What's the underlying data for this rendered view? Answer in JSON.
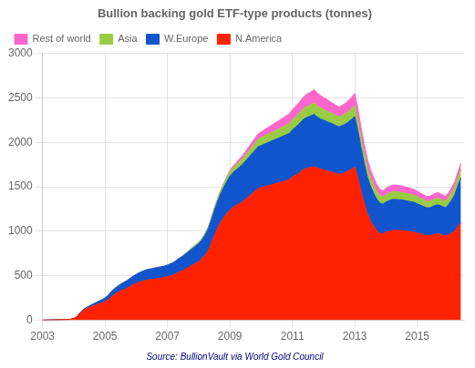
{
  "chart_data": {
    "type": "stacked_area",
    "title": "Bullion backing gold ETF-type products (tonnes)",
    "annotations": [
      "Source: BullionVault via World Gold Council"
    ],
    "x": [
      2003.0,
      2003.1,
      2003.2,
      2003.3,
      2003.4,
      2003.5,
      2003.6,
      2003.7,
      2003.8,
      2003.9,
      2004.0,
      2004.1,
      2004.2,
      2004.3,
      2004.4,
      2004.5,
      2004.6,
      2004.7,
      2004.8,
      2004.9,
      2005.0,
      2005.1,
      2005.2,
      2005.3,
      2005.4,
      2005.5,
      2005.6,
      2005.7,
      2005.8,
      2005.9,
      2006.0,
      2006.1,
      2006.2,
      2006.3,
      2006.4,
      2006.5,
      2006.6,
      2006.7,
      2006.8,
      2006.9,
      2007.0,
      2007.1,
      2007.2,
      2007.3,
      2007.4,
      2007.5,
      2007.6,
      2007.7,
      2007.8,
      2007.9,
      2008.0,
      2008.1,
      2008.2,
      2008.3,
      2008.4,
      2008.5,
      2008.6,
      2008.7,
      2008.8,
      2008.9,
      2009.0,
      2009.1,
      2009.2,
      2009.3,
      2009.4,
      2009.5,
      2009.6,
      2009.7,
      2009.8,
      2009.9,
      2010.0,
      2010.1,
      2010.2,
      2010.3,
      2010.4,
      2010.5,
      2010.6,
      2010.7,
      2010.8,
      2010.9,
      2011.0,
      2011.1,
      2011.2,
      2011.3,
      2011.4,
      2011.5,
      2011.6,
      2011.7,
      2011.8,
      2011.9,
      2012.0,
      2012.1,
      2012.2,
      2012.3,
      2012.4,
      2012.5,
      2012.6,
      2012.7,
      2012.8,
      2012.9,
      2013.0,
      2013.1,
      2013.2,
      2013.3,
      2013.4,
      2013.5,
      2013.6,
      2013.7,
      2013.8,
      2013.9,
      2014.0,
      2014.1,
      2014.2,
      2014.3,
      2014.4,
      2014.5,
      2014.6,
      2014.7,
      2014.8,
      2014.9,
      2015.0,
      2015.1,
      2015.2,
      2015.3,
      2015.4,
      2015.5,
      2015.6,
      2015.7,
      2015.8,
      2015.9,
      2016.0,
      2016.1,
      2016.2,
      2016.3,
      2016.4
    ],
    "series": [
      {
        "name": "N.America",
        "color": "#FF2200",
        "values": [
          2,
          3,
          4,
          5,
          6,
          7,
          8,
          9,
          10,
          12,
          20,
          40,
          80,
          110,
          130,
          145,
          160,
          170,
          185,
          195,
          210,
          230,
          260,
          290,
          310,
          330,
          345,
          360,
          380,
          400,
          415,
          430,
          440,
          450,
          455,
          460,
          465,
          470,
          475,
          480,
          490,
          500,
          510,
          530,
          545,
          560,
          580,
          600,
          620,
          640,
          660,
          690,
          730,
          780,
          860,
          950,
          1030,
          1100,
          1150,
          1200,
          1240,
          1270,
          1290,
          1310,
          1330,
          1360,
          1390,
          1420,
          1450,
          1480,
          1490,
          1500,
          1510,
          1520,
          1530,
          1540,
          1550,
          1560,
          1570,
          1580,
          1610,
          1630,
          1650,
          1680,
          1700,
          1710,
          1720,
          1730,
          1710,
          1700,
          1690,
          1680,
          1670,
          1660,
          1650,
          1640,
          1650,
          1660,
          1680,
          1700,
          1720,
          1600,
          1450,
          1320,
          1200,
          1120,
          1060,
          1010,
          980,
          970,
          990,
          1000,
          1010,
          1010,
          1010,
          1010,
          1005,
          1000,
          995,
          990,
          980,
          970,
          960,
          950,
          950,
          960,
          970,
          970,
          960,
          950,
          960,
          980,
          1000,
          1050,
          1100
        ]
      },
      {
        "name": "W.Europe",
        "color": "#1155CC",
        "values": [
          0,
          0,
          0,
          0,
          0,
          0,
          0,
          0,
          0,
          0,
          0,
          0,
          5,
          8,
          12,
          15,
          20,
          25,
          30,
          35,
          40,
          50,
          60,
          65,
          70,
          75,
          80,
          85,
          90,
          95,
          100,
          105,
          110,
          115,
          118,
          120,
          122,
          124,
          126,
          128,
          130,
          135,
          140,
          148,
          155,
          162,
          170,
          178,
          186,
          194,
          200,
          210,
          225,
          240,
          260,
          280,
          300,
          320,
          340,
          360,
          380,
          390,
          400,
          410,
          420,
          430,
          440,
          450,
          460,
          470,
          475,
          480,
          485,
          490,
          495,
          500,
          505,
          510,
          515,
          520,
          530,
          540,
          550,
          560,
          570,
          575,
          580,
          585,
          575,
          565,
          560,
          555,
          550,
          545,
          540,
          535,
          540,
          545,
          550,
          560,
          570,
          530,
          490,
          450,
          415,
          390,
          370,
          355,
          340,
          335,
          340,
          345,
          348,
          348,
          346,
          344,
          342,
          340,
          338,
          336,
          330,
          325,
          320,
          315,
          315,
          320,
          325,
          325,
          320,
          315,
          340,
          370,
          410,
          460,
          500
        ]
      },
      {
        "name": "Asia",
        "color": "#99CC44",
        "values": [
          0,
          0,
          0,
          0,
          0,
          0,
          0,
          0,
          0,
          0,
          0,
          0,
          0,
          0,
          0,
          0,
          0,
          0,
          0,
          0,
          0,
          0,
          0,
          0,
          0,
          0,
          0,
          0,
          0,
          0,
          0,
          0,
          0,
          0,
          0,
          0,
          0,
          0,
          0,
          0,
          0,
          0,
          0,
          2,
          4,
          6,
          8,
          10,
          12,
          14,
          16,
          18,
          20,
          22,
          25,
          28,
          32,
          36,
          40,
          44,
          48,
          52,
          56,
          60,
          64,
          68,
          72,
          76,
          80,
          84,
          88,
          90,
          92,
          95,
          98,
          100,
          102,
          105,
          108,
          110,
          112,
          114,
          116,
          118,
          120,
          122,
          124,
          126,
          124,
          122,
          120,
          118,
          116,
          114,
          112,
          110,
          112,
          114,
          116,
          118,
          120,
          115,
          110,
          105,
          100,
          95,
          90,
          86,
          82,
          80,
          82,
          84,
          86,
          86,
          85,
          84,
          83,
          82,
          81,
          80,
          78,
          76,
          74,
          72,
          72,
          74,
          76,
          76,
          74,
          72,
          75,
          78,
          82,
          88,
          94
        ]
      },
      {
        "name": "Rest of world",
        "color": "#FF66CC",
        "values": [
          0,
          0,
          0,
          0,
          0,
          0,
          0,
          0,
          0,
          0,
          0,
          0,
          0,
          0,
          0,
          0,
          0,
          0,
          0,
          0,
          0,
          0,
          0,
          0,
          0,
          0,
          0,
          0,
          0,
          0,
          0,
          0,
          0,
          0,
          0,
          0,
          0,
          0,
          0,
          0,
          0,
          0,
          0,
          0,
          0,
          0,
          0,
          0,
          0,
          0,
          0,
          0,
          0,
          0,
          0,
          0,
          0,
          0,
          5,
          10,
          15,
          20,
          25,
          30,
          35,
          40,
          45,
          50,
          55,
          60,
          65,
          70,
          75,
          80,
          85,
          90,
          95,
          100,
          105,
          110,
          115,
          120,
          125,
          130,
          135,
          140,
          145,
          150,
          145,
          140,
          135,
          130,
          125,
          120,
          115,
          110,
          115,
          120,
          125,
          130,
          140,
          130,
          120,
          110,
          100,
          92,
          85,
          79,
          73,
          70,
          72,
          74,
          76,
          76,
          74,
          72,
          70,
          68,
          66,
          64,
          62,
          60,
          58,
          56,
          56,
          58,
          60,
          60,
          58,
          56,
          58,
          60,
          62,
          66,
          70
        ]
      }
    ],
    "stacked": true,
    "xlim": [
      2003,
      2016.5
    ],
    "xticks": [
      2003,
      2005,
      2007,
      2009,
      2011,
      2013,
      2015
    ],
    "ylim": [
      0,
      3000
    ],
    "yticks": [
      0,
      500,
      1000,
      1500,
      2000,
      2500,
      3000
    ],
    "grid": true,
    "legend": "upper left"
  }
}
